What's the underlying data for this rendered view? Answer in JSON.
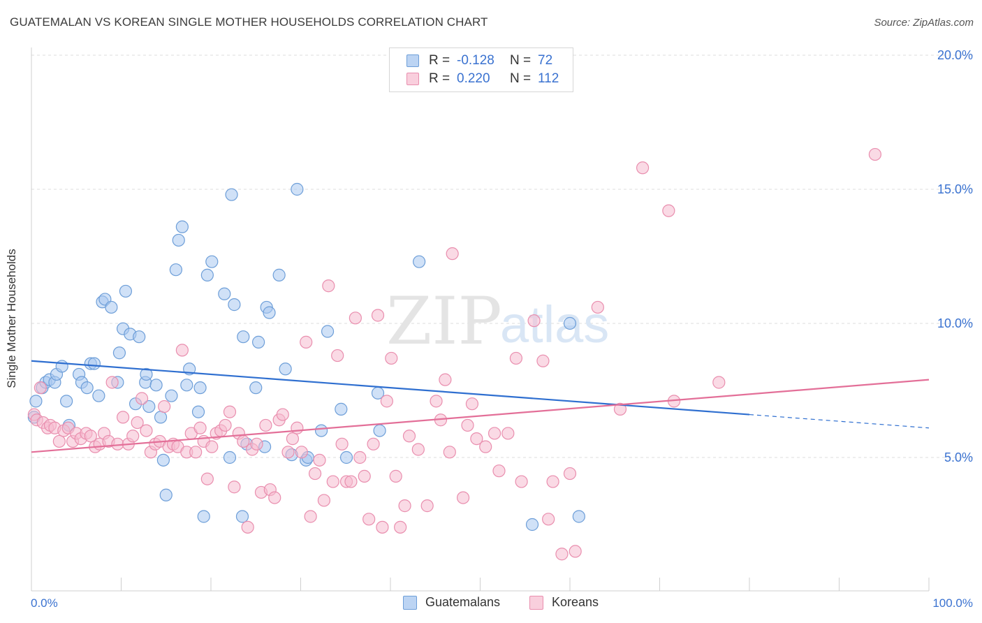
{
  "header": {
    "title": "GUATEMALAN VS KOREAN SINGLE MOTHER HOUSEHOLDS CORRELATION CHART",
    "source": "Source: ZipAtlas.com"
  },
  "legend": {
    "rows": [
      {
        "r_label": "R =",
        "r_value": "-0.128",
        "n_label": "N =",
        "n_value": "72"
      },
      {
        "r_label": "R =",
        "r_value": "0.220",
        "n_label": "N =",
        "n_value": "112"
      }
    ]
  },
  "bottom_legend": {
    "series_a": "Guatemalans",
    "series_b": "Koreans"
  },
  "watermark": {
    "part1": "ZIP",
    "part2": "atlas"
  },
  "colors": {
    "blue_fill": "#a9c8f0",
    "blue_stroke": "#6d9ed8",
    "blue_line": "#2f6fd0",
    "pink_fill": "#f6bcd0",
    "pink_stroke": "#e98eae",
    "pink_line": "#e36f98",
    "axis_text": "#3a72d0",
    "grid": "#dddddd"
  },
  "chart_data": {
    "type": "scatter",
    "title": "GUATEMALAN VS KOREAN SINGLE MOTHER HOUSEHOLDS CORRELATION CHART",
    "xlabel": "",
    "ylabel": "Single Mother Households",
    "xlim": [
      0,
      100
    ],
    "ylim": [
      0,
      20.5
    ],
    "x_tick_labels": [
      "0.0%",
      "100.0%"
    ],
    "y_ticks": [
      5,
      10,
      15,
      20
    ],
    "y_tick_labels": [
      "5.0%",
      "10.0%",
      "15.0%",
      "20.0%"
    ],
    "grid": true,
    "series": [
      {
        "name": "Guatemalans",
        "r": -0.128,
        "n": 72,
        "trend": {
          "x0": 0,
          "y0": 8.6,
          "x1": 80,
          "y1": 6.6,
          "dash_x1": 100,
          "dash_y1": 6.1
        },
        "points": [
          [
            0.3,
            6.5
          ],
          [
            0.5,
            7.1
          ],
          [
            1.2,
            7.6
          ],
          [
            1.6,
            7.8
          ],
          [
            2.0,
            7.9
          ],
          [
            2.6,
            7.8
          ],
          [
            2.8,
            8.1
          ],
          [
            3.4,
            8.4
          ],
          [
            3.9,
            7.1
          ],
          [
            4.2,
            6.2
          ],
          [
            5.3,
            8.1
          ],
          [
            5.6,
            7.8
          ],
          [
            6.2,
            7.6
          ],
          [
            6.6,
            8.5
          ],
          [
            7.0,
            8.5
          ],
          [
            7.5,
            7.3
          ],
          [
            7.9,
            10.8
          ],
          [
            8.2,
            10.9
          ],
          [
            8.9,
            10.6
          ],
          [
            9.6,
            7.8
          ],
          [
            9.8,
            8.9
          ],
          [
            10.2,
            9.8
          ],
          [
            10.5,
            11.2
          ],
          [
            11.0,
            9.6
          ],
          [
            11.6,
            7.0
          ],
          [
            12.0,
            9.5
          ],
          [
            12.7,
            7.8
          ],
          [
            12.8,
            8.1
          ],
          [
            13.1,
            6.9
          ],
          [
            13.9,
            7.7
          ],
          [
            14.4,
            6.5
          ],
          [
            14.7,
            4.9
          ],
          [
            15.0,
            3.6
          ],
          [
            15.6,
            7.3
          ],
          [
            16.1,
            12.0
          ],
          [
            16.4,
            13.1
          ],
          [
            16.8,
            13.6
          ],
          [
            17.3,
            7.7
          ],
          [
            17.6,
            8.3
          ],
          [
            18.6,
            6.7
          ],
          [
            18.8,
            7.6
          ],
          [
            19.2,
            2.8
          ],
          [
            19.6,
            11.8
          ],
          [
            20.1,
            12.3
          ],
          [
            21.5,
            11.1
          ],
          [
            22.1,
            5.0
          ],
          [
            22.3,
            14.8
          ],
          [
            22.6,
            10.7
          ],
          [
            23.5,
            2.8
          ],
          [
            23.6,
            9.5
          ],
          [
            24.0,
            5.5
          ],
          [
            25.0,
            7.6
          ],
          [
            25.3,
            9.3
          ],
          [
            26.0,
            5.4
          ],
          [
            26.2,
            10.6
          ],
          [
            26.5,
            10.4
          ],
          [
            27.6,
            11.8
          ],
          [
            28.3,
            8.3
          ],
          [
            29.6,
            15.0
          ],
          [
            30.6,
            4.9
          ],
          [
            30.8,
            5.0
          ],
          [
            32.3,
            6.0
          ],
          [
            33.0,
            9.7
          ],
          [
            34.5,
            6.8
          ],
          [
            35.1,
            5.0
          ],
          [
            38.6,
            7.4
          ],
          [
            38.8,
            6.0
          ],
          [
            43.2,
            12.3
          ],
          [
            55.8,
            2.5
          ],
          [
            60.0,
            10.0
          ],
          [
            61.0,
            2.8
          ],
          [
            29.0,
            5.1
          ]
        ]
      },
      {
        "name": "Koreans",
        "r": 0.22,
        "n": 112,
        "trend": {
          "x0": 0,
          "y0": 5.2,
          "x1": 100,
          "y1": 7.9
        },
        "points": [
          [
            0.3,
            6.6
          ],
          [
            0.6,
            6.4
          ],
          [
            1.0,
            7.6
          ],
          [
            1.3,
            6.3
          ],
          [
            1.8,
            6.1
          ],
          [
            2.1,
            6.2
          ],
          [
            2.6,
            6.1
          ],
          [
            3.1,
            5.6
          ],
          [
            3.6,
            6.0
          ],
          [
            4.1,
            6.1
          ],
          [
            4.6,
            5.6
          ],
          [
            5.0,
            5.9
          ],
          [
            5.5,
            5.7
          ],
          [
            6.1,
            5.9
          ],
          [
            6.6,
            5.8
          ],
          [
            7.1,
            5.4
          ],
          [
            7.6,
            5.5
          ],
          [
            8.1,
            5.9
          ],
          [
            8.6,
            5.6
          ],
          [
            9.0,
            7.8
          ],
          [
            9.6,
            5.5
          ],
          [
            10.2,
            6.5
          ],
          [
            10.8,
            5.5
          ],
          [
            11.3,
            5.8
          ],
          [
            11.8,
            6.3
          ],
          [
            12.3,
            7.2
          ],
          [
            12.8,
            6.0
          ],
          [
            13.3,
            5.2
          ],
          [
            13.8,
            5.5
          ],
          [
            14.3,
            5.6
          ],
          [
            14.8,
            6.9
          ],
          [
            15.3,
            5.4
          ],
          [
            15.8,
            5.5
          ],
          [
            16.3,
            5.4
          ],
          [
            16.8,
            9.0
          ],
          [
            17.3,
            5.2
          ],
          [
            17.8,
            5.9
          ],
          [
            18.3,
            5.2
          ],
          [
            18.8,
            6.1
          ],
          [
            19.2,
            5.6
          ],
          [
            19.6,
            4.2
          ],
          [
            20.1,
            5.4
          ],
          [
            20.6,
            5.9
          ],
          [
            21.1,
            6.0
          ],
          [
            21.6,
            6.2
          ],
          [
            22.1,
            6.7
          ],
          [
            22.6,
            3.9
          ],
          [
            23.1,
            5.9
          ],
          [
            23.6,
            5.6
          ],
          [
            24.1,
            2.4
          ],
          [
            24.6,
            5.3
          ],
          [
            25.1,
            5.5
          ],
          [
            25.6,
            3.7
          ],
          [
            26.1,
            6.2
          ],
          [
            26.6,
            3.8
          ],
          [
            27.1,
            3.5
          ],
          [
            27.6,
            6.4
          ],
          [
            28.0,
            6.6
          ],
          [
            28.6,
            5.2
          ],
          [
            29.1,
            5.7
          ],
          [
            29.6,
            6.1
          ],
          [
            30.1,
            5.2
          ],
          [
            30.6,
            9.3
          ],
          [
            31.1,
            2.8
          ],
          [
            31.6,
            4.4
          ],
          [
            32.1,
            4.9
          ],
          [
            32.6,
            3.4
          ],
          [
            33.1,
            11.4
          ],
          [
            33.6,
            4.1
          ],
          [
            34.1,
            8.8
          ],
          [
            34.6,
            5.5
          ],
          [
            35.1,
            4.1
          ],
          [
            35.6,
            4.1
          ],
          [
            36.1,
            10.2
          ],
          [
            36.6,
            5.0
          ],
          [
            37.1,
            4.3
          ],
          [
            37.6,
            2.7
          ],
          [
            38.1,
            5.5
          ],
          [
            38.6,
            10.3
          ],
          [
            39.1,
            2.4
          ],
          [
            39.6,
            7.1
          ],
          [
            40.1,
            8.7
          ],
          [
            40.6,
            4.3
          ],
          [
            41.1,
            2.4
          ],
          [
            41.6,
            3.2
          ],
          [
            42.1,
            5.8
          ],
          [
            43.1,
            5.3
          ],
          [
            44.1,
            3.2
          ],
          [
            45.1,
            7.1
          ],
          [
            45.6,
            6.4
          ],
          [
            46.1,
            7.9
          ],
          [
            46.6,
            5.2
          ],
          [
            46.9,
            12.6
          ],
          [
            48.1,
            3.5
          ],
          [
            48.6,
            6.2
          ],
          [
            49.1,
            7.0
          ],
          [
            49.6,
            5.7
          ],
          [
            50.6,
            5.4
          ],
          [
            51.6,
            5.9
          ],
          [
            52.1,
            4.5
          ],
          [
            53.1,
            5.9
          ],
          [
            54.0,
            8.7
          ],
          [
            54.6,
            4.1
          ],
          [
            57.6,
            2.7
          ],
          [
            58.1,
            4.1
          ],
          [
            59.1,
            1.4
          ],
          [
            60.6,
            1.5
          ],
          [
            63.1,
            10.6
          ],
          [
            65.6,
            6.8
          ],
          [
            68.1,
            15.8
          ],
          [
            76.6,
            7.8
          ],
          [
            71.6,
            7.1
          ]
        ],
        "extra_points": [
          [
            56.0,
            10.1
          ],
          [
            57.0,
            8.6
          ],
          [
            60.0,
            4.4
          ],
          [
            94.0,
            16.3
          ],
          [
            71.0,
            14.2
          ]
        ]
      }
    ]
  }
}
